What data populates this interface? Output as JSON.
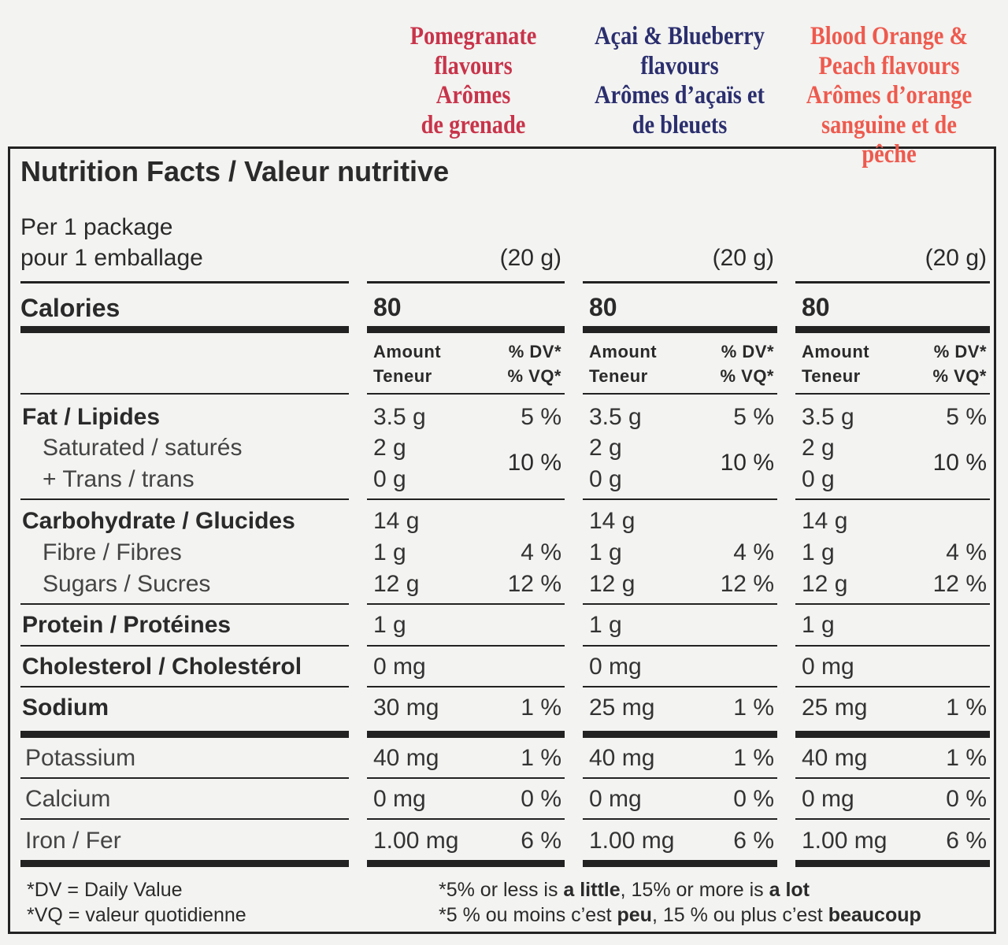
{
  "flavours": [
    {
      "lines": [
        "Pomegranate",
        "flavours",
        "Arômes",
        "de grenade"
      ],
      "color": "#c8344a"
    },
    {
      "lines": [
        "Açai & Blueberry",
        "flavours",
        "Arômes d’açaïs et",
        "de bleuets"
      ],
      "color": "#2b2f6e"
    },
    {
      "lines": [
        "Blood Orange &",
        "Peach flavours",
        "Arômes d’orange",
        "sanguine et de pêche"
      ],
      "color": "#ee5a4e"
    }
  ],
  "title": "Nutrition Facts / Valeur nutritive",
  "serving": {
    "line1": "Per 1 package",
    "line2": "pour 1 emballage",
    "sizes": [
      "(20 g)",
      "(20 g)",
      "(20 g)"
    ]
  },
  "calories": {
    "label": "Calories",
    "values": [
      "80",
      "80",
      "80"
    ]
  },
  "column_header": {
    "amount": "Amount",
    "teneur": "Teneur",
    "dv": "% DV*",
    "vq": "% VQ*"
  },
  "sat_trans_dv": [
    "10 %",
    "10 %",
    "10 %"
  ],
  "nutrients": [
    {
      "label": "Fat / Lipides",
      "style": "bold",
      "values": [
        {
          "amount": "3.5 g",
          "dv": "5 %"
        },
        {
          "amount": "3.5 g",
          "dv": "5 %"
        },
        {
          "amount": "3.5 g",
          "dv": "5 %"
        }
      ]
    },
    {
      "label": "Saturated / saturés",
      "style": "indent",
      "values": [
        {
          "amount": "2 g",
          "dv": ""
        },
        {
          "amount": "2 g",
          "dv": ""
        },
        {
          "amount": "2 g",
          "dv": ""
        }
      ]
    },
    {
      "label": "+ Trans / trans",
      "style": "indent",
      "values": [
        {
          "amount": "0 g",
          "dv": ""
        },
        {
          "amount": "0 g",
          "dv": ""
        },
        {
          "amount": "0 g",
          "dv": ""
        }
      ]
    },
    {
      "label": "Carbohydrate / Glucides",
      "style": "bold",
      "values": [
        {
          "amount": "14 g",
          "dv": ""
        },
        {
          "amount": "14 g",
          "dv": ""
        },
        {
          "amount": "14 g",
          "dv": ""
        }
      ]
    },
    {
      "label": "Fibre / Fibres",
      "style": "indent",
      "values": [
        {
          "amount": "1 g",
          "dv": "4 %"
        },
        {
          "amount": "1 g",
          "dv": "4 %"
        },
        {
          "amount": "1 g",
          "dv": "4 %"
        }
      ]
    },
    {
      "label": "Sugars / Sucres",
      "style": "indent",
      "values": [
        {
          "amount": "12 g",
          "dv": "12 %"
        },
        {
          "amount": "12 g",
          "dv": "12 %"
        },
        {
          "amount": "12 g",
          "dv": "12 %"
        }
      ]
    },
    {
      "label": "Protein / Protéines",
      "style": "bold",
      "values": [
        {
          "amount": "1 g",
          "dv": ""
        },
        {
          "amount": "1 g",
          "dv": ""
        },
        {
          "amount": "1 g",
          "dv": ""
        }
      ]
    },
    {
      "label": "Cholesterol / Cholestérol",
      "style": "bold",
      "values": [
        {
          "amount": "0 mg",
          "dv": ""
        },
        {
          "amount": "0 mg",
          "dv": ""
        },
        {
          "amount": "0 mg",
          "dv": ""
        }
      ]
    },
    {
      "label": "Sodium",
      "style": "bold",
      "values": [
        {
          "amount": "30 mg",
          "dv": "1 %"
        },
        {
          "amount": "25 mg",
          "dv": "1 %"
        },
        {
          "amount": "25 mg",
          "dv": "1 %"
        }
      ]
    },
    {
      "label": "Potassium",
      "style": "normal",
      "values": [
        {
          "amount": "40 mg",
          "dv": "1 %"
        },
        {
          "amount": "40 mg",
          "dv": "1 %"
        },
        {
          "amount": "40 mg",
          "dv": "1 %"
        }
      ]
    },
    {
      "label": "Calcium",
      "style": "normal",
      "values": [
        {
          "amount": "0 mg",
          "dv": "0 %"
        },
        {
          "amount": "0 mg",
          "dv": "0 %"
        },
        {
          "amount": "0 mg",
          "dv": "0 %"
        }
      ]
    },
    {
      "label": "Iron / Fer",
      "style": "normal",
      "values": [
        {
          "amount": "1.00 mg",
          "dv": "6 %"
        },
        {
          "amount": "1.00 mg",
          "dv": "6 %"
        },
        {
          "amount": "1.00 mg",
          "dv": "6 %"
        }
      ]
    }
  ],
  "footnotes": {
    "dv": "*DV = Daily Value",
    "vq": "*VQ = valeur quotidienne",
    "en": {
      "p1": "*5% or less is ",
      "b1": "a little",
      "p2": ", 15% or more is ",
      "b2": "a lot"
    },
    "fr": {
      "p1": "*5 % ou moins c’est ",
      "b1": "peu",
      "p2": ", 15 % ou plus c’est ",
      "b2": "beaucoup"
    }
  }
}
